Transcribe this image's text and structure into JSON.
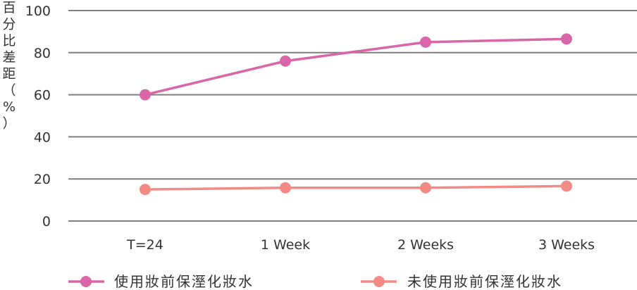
{
  "chart_data": {
    "type": "line",
    "ylabel": "百分比差距（%）",
    "ylim": [
      0,
      100
    ],
    "yticks": [
      0,
      20,
      40,
      60,
      80,
      100
    ],
    "categories": [
      "T=24",
      "1 Week",
      "2 Weeks",
      "3 Weeks"
    ],
    "grid": true,
    "legend_position": "bottom",
    "series": [
      {
        "name": "使用妝前保溼化妝水",
        "values": [
          60,
          76,
          85,
          86.5
        ],
        "color": "#d966a8"
      },
      {
        "name": "未使用妝前保溼化妝水",
        "values": [
          15,
          15.8,
          15.8,
          16.6
        ],
        "color": "#f28a85"
      }
    ]
  }
}
